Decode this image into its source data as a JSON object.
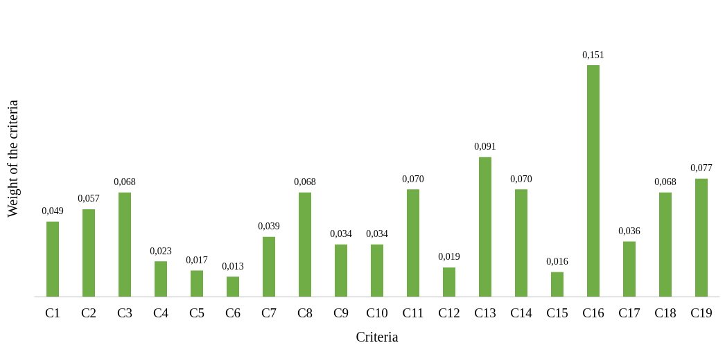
{
  "chart_data": {
    "type": "bar",
    "xlabel": "Criteria",
    "ylabel": "Weight of the criteria",
    "categories": [
      "C1",
      "C2",
      "C3",
      "C4",
      "C5",
      "C6",
      "C7",
      "C8",
      "C9",
      "C10",
      "C11",
      "C12",
      "C13",
      "C14",
      "C15",
      "C16",
      "C17",
      "C18",
      "C19"
    ],
    "values": [
      0.049,
      0.057,
      0.068,
      0.023,
      0.017,
      0.013,
      0.039,
      0.068,
      0.034,
      0.034,
      0.07,
      0.019,
      0.091,
      0.07,
      0.016,
      0.151,
      0.036,
      0.068,
      0.077
    ],
    "value_labels": [
      "0,049",
      "0,057",
      "0,068",
      "0,023",
      "0,017",
      "0,013",
      "0,039",
      "0,068",
      "0,034",
      "0,034",
      "0,070",
      "0,019",
      "0,091",
      "0,070",
      "0,016",
      "0,151",
      "0,036",
      "0,068",
      "0,077"
    ],
    "color": "#70ad47",
    "grid": false,
    "tick_labels": "x"
  }
}
